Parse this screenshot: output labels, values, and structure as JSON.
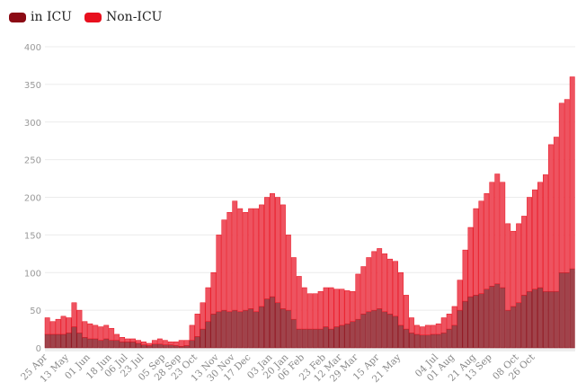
{
  "colors": {
    "icu": "#8b0a14",
    "non_icu": "#e8101e"
  },
  "chart_data": {
    "type": "bar",
    "stacked": true,
    "title": "",
    "xlabel": "",
    "ylabel": "",
    "ylim": [
      0,
      400
    ],
    "yticks": [
      0,
      50,
      100,
      150,
      200,
      250,
      300,
      350,
      400
    ],
    "grid": true,
    "legend_placement": "top-left",
    "xtick_labels": [
      {
        "label": "25 Apr",
        "index": 0
      },
      {
        "label": "13 May",
        "index": 4
      },
      {
        "label": "01 Jun",
        "index": 8
      },
      {
        "label": "18 Jun",
        "index": 12
      },
      {
        "label": "06 Jul",
        "index": 15
      },
      {
        "label": "23 Jul",
        "index": 18
      },
      {
        "label": "05 Sep",
        "index": 22
      },
      {
        "label": "28 Sep",
        "index": 25
      },
      {
        "label": "23 Oct",
        "index": 28
      },
      {
        "label": "13 Nov",
        "index": 32
      },
      {
        "label": "30 Nov",
        "index": 35
      },
      {
        "label": "17 Dec",
        "index": 38
      },
      {
        "label": "03 Jan",
        "index": 42
      },
      {
        "label": "20 Jan",
        "index": 45
      },
      {
        "label": "06 Feb",
        "index": 48
      },
      {
        "label": "23 Feb",
        "index": 52
      },
      {
        "label": "12 Mar",
        "index": 55
      },
      {
        "label": "29 Mar",
        "index": 58
      },
      {
        "label": "15 Apr",
        "index": 62
      },
      {
        "label": "21 May",
        "index": 66
      },
      {
        "label": "04 Jul",
        "index": 73
      },
      {
        "label": "01 Aug",
        "index": 76
      },
      {
        "label": "21 Aug",
        "index": 80
      },
      {
        "label": "13 Sep",
        "index": 83
      },
      {
        "label": "08 Oct",
        "index": 88
      },
      {
        "label": "26 Oct",
        "index": 91
      }
    ],
    "series": [
      {
        "name": "in ICU",
        "values": [
          18,
          18,
          18,
          18,
          20,
          28,
          20,
          14,
          12,
          12,
          10,
          12,
          10,
          10,
          8,
          8,
          8,
          6,
          4,
          3,
          5,
          5,
          4,
          4,
          3,
          2,
          3,
          10,
          15,
          25,
          35,
          45,
          48,
          50,
          48,
          50,
          48,
          50,
          52,
          48,
          55,
          65,
          68,
          60,
          52,
          50,
          38,
          25,
          25,
          25,
          25,
          25,
          28,
          25,
          28,
          30,
          32,
          35,
          38,
          45,
          48,
          50,
          52,
          48,
          45,
          42,
          30,
          25,
          20,
          18,
          17,
          17,
          18,
          18,
          20,
          25,
          30,
          50,
          62,
          68,
          70,
          72,
          78,
          82,
          85,
          80,
          50,
          55,
          60,
          70,
          75,
          78,
          80,
          75,
          75,
          75,
          100,
          100,
          105
        ]
      },
      {
        "name": "Non-ICU",
        "values": [
          22,
          17,
          20,
          24,
          20,
          32,
          30,
          21,
          20,
          18,
          18,
          18,
          16,
          8,
          6,
          4,
          4,
          4,
          4,
          3,
          5,
          7,
          6,
          4,
          5,
          8,
          7,
          20,
          30,
          35,
          45,
          55,
          102,
          120,
          132,
          145,
          137,
          130,
          133,
          137,
          135,
          135,
          137,
          140,
          138,
          100,
          82,
          70,
          55,
          47,
          47,
          50,
          52,
          55,
          50,
          48,
          44,
          40,
          60,
          63,
          72,
          78,
          80,
          77,
          73,
          73,
          70,
          45,
          20,
          12,
          11,
          13,
          12,
          14,
          20,
          20,
          25,
          40,
          68,
          92,
          115,
          123,
          127,
          138,
          146,
          140,
          115,
          100,
          105,
          105,
          125,
          132,
          140,
          155,
          195,
          205,
          225,
          230,
          255
        ]
      }
    ]
  }
}
